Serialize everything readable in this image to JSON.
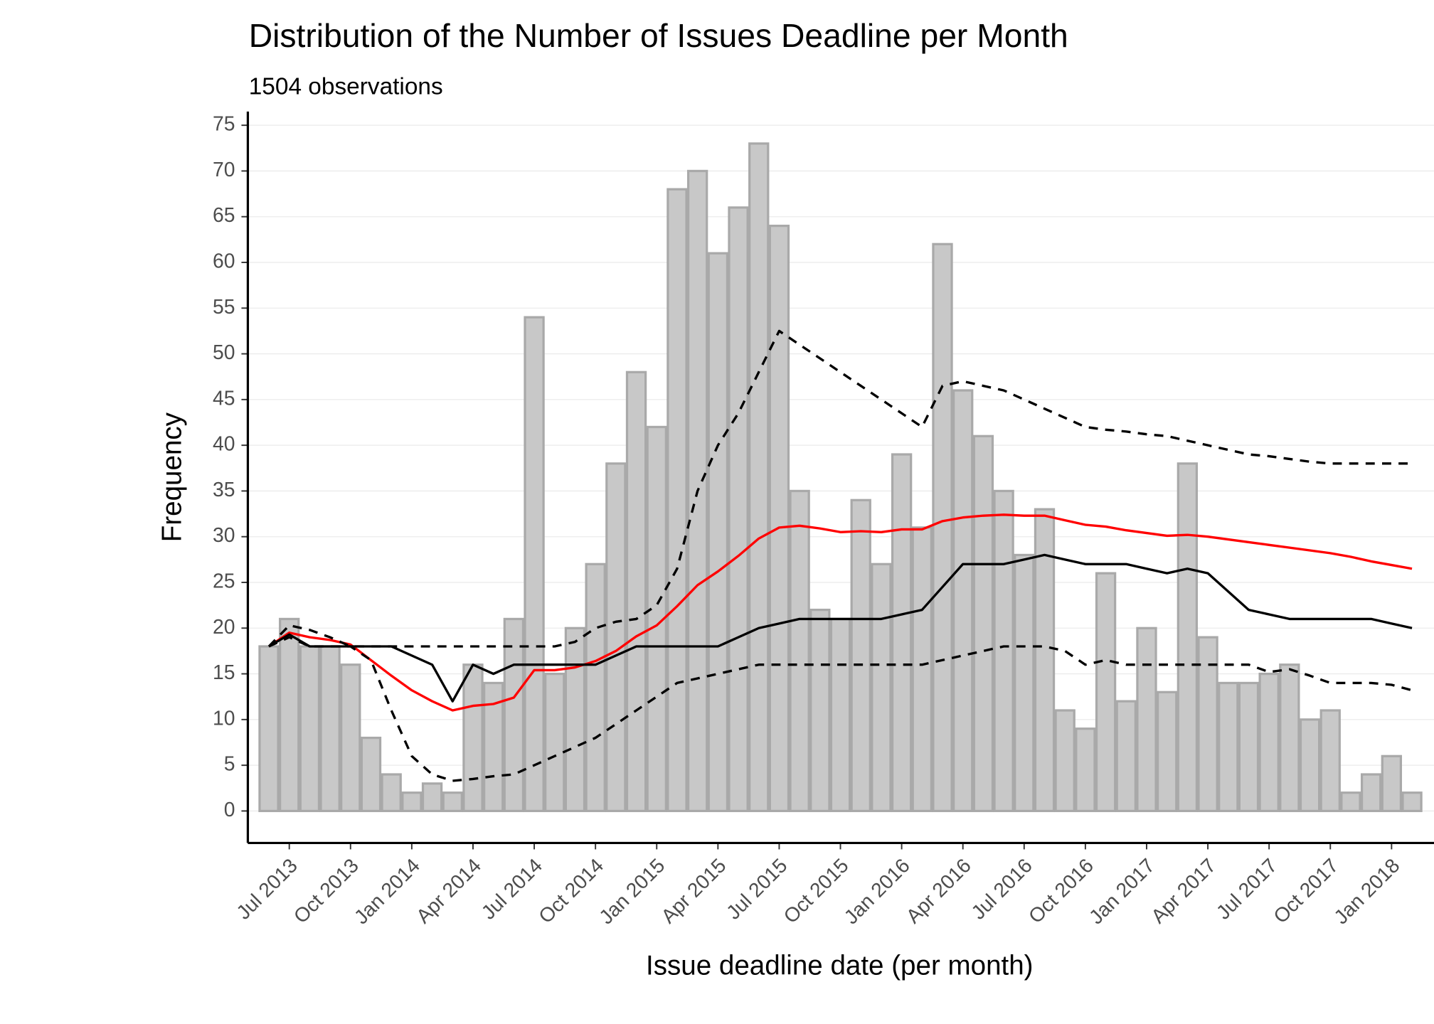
{
  "chart_data": {
    "type": "bar",
    "title": "Distribution of the Number of Issues Deadline per Month",
    "subtitle": "1504 observations",
    "xlabel": "Issue deadline date (per month)",
    "ylabel": "Frequency",
    "categories": [
      null,
      "Jul 2013",
      null,
      null,
      "Oct 2013",
      null,
      null,
      "Jan 2014",
      null,
      null,
      "Apr 2014",
      null,
      null,
      "Jul 2014",
      null,
      null,
      "Oct 2014",
      null,
      null,
      "Jan 2015",
      null,
      null,
      "Apr 2015",
      null,
      null,
      "Jul 2015",
      null,
      null,
      "Oct 2015",
      null,
      null,
      "Jan 2016",
      null,
      null,
      "Apr 2016",
      null,
      null,
      "Jul 2016",
      null,
      null,
      "Oct 2016",
      null,
      null,
      "Jan 2017",
      null,
      null,
      "Apr 2017",
      null,
      null,
      "Jul 2017",
      null,
      null,
      "Oct 2017",
      null,
      null,
      "Jan 2018",
      null
    ],
    "values": [
      18,
      21,
      18,
      18,
      16,
      8,
      4,
      2,
      3,
      2,
      16,
      14,
      21,
      54,
      15,
      20,
      27,
      38,
      48,
      42,
      68,
      70,
      61,
      66,
      73,
      64,
      35,
      22,
      21,
      34,
      27,
      39,
      31,
      62,
      46,
      41,
      35,
      28,
      33,
      11,
      9,
      26,
      12,
      20,
      13,
      38,
      19,
      14,
      14,
      15,
      16,
      10,
      11,
      2,
      4,
      6,
      2
    ],
    "color": "#c8c8c8",
    "edge_color": "#a9a9a9",
    "series": [
      {
        "type": "line",
        "color": "#ff0000",
        "dashed": false,
        "values": [
          18,
          19.5,
          19,
          18.7,
          18.2,
          16.5,
          14.8,
          13.2,
          12,
          11,
          11.5,
          11.7,
          12.4,
          15.4,
          15.4,
          15.7,
          16.4,
          17.5,
          19.1,
          20.3,
          22.4,
          24.7,
          26.2,
          27.9,
          29.8,
          31,
          31.2,
          30.9,
          30.5,
          30.6,
          30.5,
          30.8,
          30.8,
          31.7,
          32.1,
          32.3,
          32.4,
          32.3,
          32.3,
          31.8,
          31.3,
          31.1,
          30.7,
          30.4,
          30.1,
          30.2,
          30,
          29.7,
          29.4,
          29.1,
          28.8,
          28.5,
          28.2,
          27.8,
          27.3,
          26.9,
          26.5
        ]
      },
      {
        "type": "line",
        "color": "#000000",
        "dashed": false,
        "values": [
          18,
          19.3,
          18,
          18,
          18,
          18,
          18,
          17,
          16,
          12,
          16,
          15,
          16,
          16,
          16,
          16,
          16,
          17,
          18,
          18,
          18,
          18,
          18,
          19,
          20,
          20.5,
          21,
          21,
          21,
          21,
          21,
          21.5,
          22,
          24.5,
          27,
          27,
          27,
          27.5,
          28,
          27.5,
          27,
          27,
          27,
          26.5,
          26,
          26.5,
          26,
          24,
          22,
          21.5,
          21,
          21,
          21,
          21,
          21,
          20.5,
          20
        ]
      },
      {
        "type": "line",
        "color": "#000000",
        "dashed": true,
        "values": [
          18,
          20.3,
          19.8,
          19,
          18,
          18,
          18,
          18,
          18,
          18,
          18,
          18,
          18,
          18,
          18,
          18.5,
          20,
          20.7,
          21,
          22.5,
          26.5,
          35,
          40,
          43.5,
          48,
          52.5,
          51,
          49.5,
          48,
          46.5,
          45,
          43.5,
          42,
          46.5,
          47,
          46.5,
          46,
          45,
          44,
          43,
          42,
          41.7,
          41.5,
          41.2,
          41,
          40.5,
          40,
          39.5,
          39,
          38.8,
          38.5,
          38.2,
          38,
          38,
          38,
          38,
          38
        ]
      },
      {
        "type": "line",
        "color": "#000000",
        "dashed": true,
        "values": [
          18,
          19,
          18,
          18,
          18,
          16.5,
          11,
          6,
          4,
          3.3,
          3.5,
          3.8,
          4,
          5,
          6,
          7,
          8,
          9.5,
          11,
          12.5,
          14,
          14.5,
          15,
          15.5,
          16,
          16,
          16,
          16,
          16,
          16,
          16,
          16,
          16,
          16.5,
          17,
          17.5,
          18,
          18,
          18,
          17.5,
          16,
          16.5,
          16,
          16,
          16,
          16,
          16,
          16,
          16,
          15.2,
          15.5,
          14.8,
          14,
          14,
          14,
          13.8,
          13.2
        ]
      }
    ],
    "ylim": [
      -3.5,
      76.5
    ],
    "yticks": [
      0,
      5,
      10,
      15,
      20,
      25,
      30,
      35,
      40,
      45,
      50,
      55,
      60,
      65,
      70,
      75
    ],
    "grid": true
  }
}
